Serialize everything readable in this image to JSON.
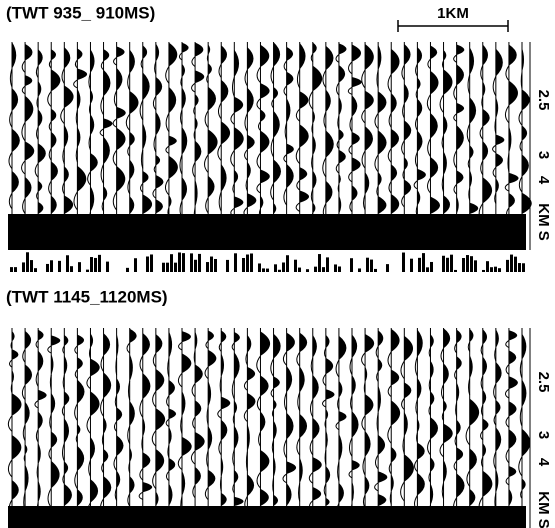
{
  "panels": [
    {
      "label": "(TWT 935_ 910MS)",
      "side_labels": [
        "2.5",
        "3",
        "4",
        "KM S"
      ]
    },
    {
      "label": "(TWT 1145_1120MS)",
      "side_labels": [
        "2.5",
        "3",
        "4",
        "KM S"
      ]
    }
  ],
  "scale_bar": {
    "label": "1KM"
  }
}
